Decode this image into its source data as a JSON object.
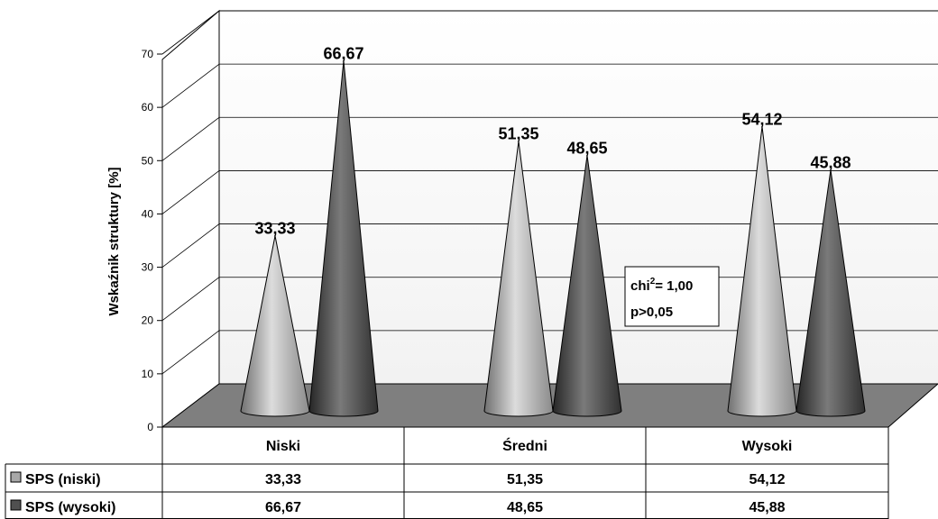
{
  "chart_data": {
    "type": "bar",
    "style": "3d-cone",
    "categories": [
      "Niski",
      "Średni",
      "Wysoki"
    ],
    "series": [
      {
        "name": "SPS (niski)",
        "values": [
          33.33,
          51.35,
          54.12
        ],
        "color": "#a8a8a8",
        "display": [
          "33,33",
          "51,35",
          "54,12"
        ]
      },
      {
        "name": "SPS (wysoki)",
        "values": [
          66.67,
          48.65,
          45.88
        ],
        "color": "#505050",
        "display": [
          "66,67",
          "48,65",
          "45,88"
        ]
      }
    ],
    "ylabel": "Wskaźnik struktury [%]",
    "ylim": [
      0,
      70
    ],
    "yticks": [
      "0",
      "10",
      "20",
      "30",
      "40",
      "50",
      "60",
      "70"
    ],
    "grid": true,
    "legend": "data-table",
    "annotation": {
      "line1_prefix": "chi",
      "line1_sup": "2",
      "line1_suffix": "= 1,00",
      "line2": "p>0,05"
    }
  }
}
